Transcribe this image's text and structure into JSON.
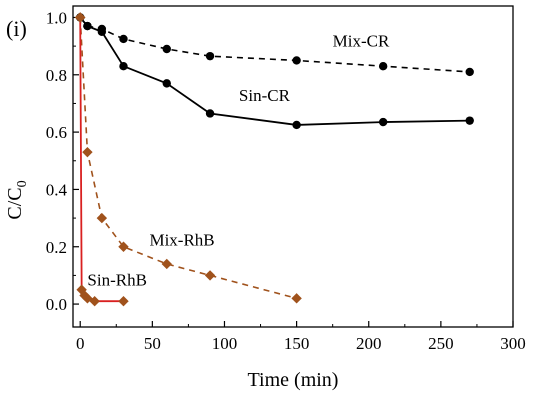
{
  "panel_label": "(i)",
  "chart_data": {
    "type": "line",
    "title": "",
    "xlabel": "Time (min)",
    "ylabel": "C/C0",
    "ylabel_main": "C/C",
    "ylabel_sub": "0",
    "xlim": [
      -5,
      300
    ],
    "ylim": [
      -0.08,
      1.04
    ],
    "xticks": [
      0,
      50,
      100,
      150,
      200,
      250,
      300
    ],
    "yticks": [
      0.0,
      0.2,
      0.4,
      0.6,
      0.8,
      1.0
    ],
    "ytick_labels": [
      "0.0",
      "0.2",
      "0.4",
      "0.6",
      "0.8",
      "1.0"
    ],
    "series": [
      {
        "name": "Mix-CR",
        "color": "#000000",
        "marker": "circle",
        "dashed": true,
        "x": [
          0,
          5,
          15,
          30,
          60,
          90,
          150,
          210,
          270
        ],
        "y": [
          1.0,
          0.97,
          0.96,
          0.925,
          0.89,
          0.865,
          0.85,
          0.83,
          0.81
        ]
      },
      {
        "name": "Sin-CR",
        "color": "#000000",
        "marker": "circle",
        "dashed": false,
        "x": [
          0,
          5,
          15,
          30,
          60,
          90,
          150,
          210,
          270
        ],
        "y": [
          1.0,
          0.97,
          0.95,
          0.83,
          0.77,
          0.665,
          0.625,
          0.635,
          0.64
        ]
      },
      {
        "name": "Mix-RhB",
        "color": "#a0521c",
        "marker": "diamond",
        "dashed": true,
        "x": [
          0,
          5,
          15,
          30,
          60,
          90,
          150
        ],
        "y": [
          1.0,
          0.53,
          0.3,
          0.2,
          0.14,
          0.1,
          0.02
        ]
      },
      {
        "name": "Sin-RhB",
        "color": "#a0521c",
        "line_color": "#d92020",
        "marker": "diamond",
        "dashed": false,
        "x": [
          0,
          1,
          3,
          5,
          10,
          30
        ],
        "y": [
          1.0,
          0.05,
          0.03,
          0.02,
          0.01,
          0.01
        ]
      }
    ],
    "annotations": [
      {
        "text": "Mix-CR",
        "x": 175,
        "y": 0.92
      },
      {
        "text": "Sin-CR",
        "x": 110,
        "y": 0.73
      },
      {
        "text": "Mix-RhB",
        "x": 48,
        "y": 0.225
      },
      {
        "text": "Sin-RhB",
        "x": 5,
        "y": 0.085
      }
    ]
  }
}
